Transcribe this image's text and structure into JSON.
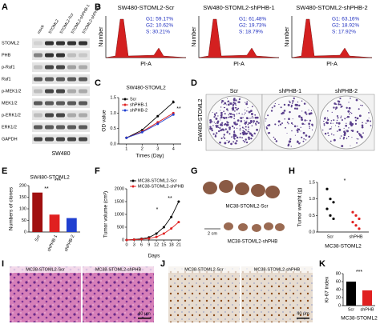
{
  "figure": {
    "panel_labels": [
      "A",
      "B",
      "C",
      "D",
      "E",
      "F",
      "G",
      "H",
      "I",
      "J",
      "K"
    ],
    "blot": {
      "lanes": [
        "mock",
        "STOML2",
        "STOML2-Scr",
        "STOML2-shPHB-1",
        "STOML2-shPHB-2"
      ],
      "rows": [
        "STOML2",
        "PHB",
        "p-Raf1",
        "Raf1",
        "p-MEK1/2",
        "MEK1/2",
        "p-ERK1/2",
        "ERK1/2",
        "GAPDH"
      ],
      "cell_line": "SW480"
    },
    "flow": {
      "y_label": "Number",
      "x_label": "PI-A",
      "panels": [
        {
          "title": "SW480-STOML2-Scr",
          "stats": [
            "G1: 59.17%",
            "G2: 10.62%",
            "S: 30.21%"
          ]
        },
        {
          "title": "SW480-STOML2-shPHB-1",
          "stats": [
            "G1: 61.48%",
            "G2: 19.73%",
            "S: 18.79%"
          ]
        },
        {
          "title": "SW480-STOML2-shPHB-2",
          "stats": [
            "G1: 63.16%",
            "G2: 18.92%",
            "S: 17.92%"
          ]
        }
      ]
    },
    "colony": {
      "side_label": "SW480-STOML2",
      "plates": [
        "Scr",
        "shPHB-1",
        "shPHB-2"
      ]
    },
    "tumor_photo": {
      "scr": "MC38-STOML2-Scr",
      "sh": "MC38-STOML2-shPHB",
      "scale": "2 cm"
    },
    "he": {
      "labels": [
        "MC38-STOML2-Scr",
        "MC38-STOML2-shPHB"
      ],
      "scale": "40 μm"
    },
    "ihc": {
      "labels": [
        "MC38-STOML2-Scr",
        "MC38-STOML2-shPHB"
      ],
      "scale": "40 μm"
    }
  },
  "chart_data": [
    {
      "type": "line",
      "title": "SW480-STOML2",
      "y_label": "OD value",
      "x_label": "Times (Day)",
      "x": [
        1,
        2,
        3,
        4
      ],
      "xlim": [
        0.5,
        4.5
      ],
      "xticks": [
        1,
        2,
        3,
        4
      ],
      "ylim": [
        0,
        1.5
      ],
      "yticks": [
        {
          "value": 0,
          "label": "0.0"
        },
        {
          "value": 0.5,
          "label": "0.5"
        },
        {
          "value": 1,
          "label": "1.0"
        },
        {
          "value": 1.5,
          "label": "1.5"
        }
      ],
      "series": [
        {
          "name": "Scr",
          "color": "#000000",
          "values": [
            0.2,
            0.45,
            0.9,
            1.35
          ]
        },
        {
          "name": "shPHB-1",
          "color": "#e02020",
          "values": [
            0.2,
            0.4,
            0.7,
            1.0
          ]
        },
        {
          "name": "shPHB-2",
          "color": "#2040d0",
          "values": [
            0.2,
            0.38,
            0.65,
            0.95
          ]
        }
      ],
      "annotations": [
        "*",
        "**"
      ]
    },
    {
      "type": "bar",
      "title": "SW480-STOML2",
      "y_label": "Numbers of clones",
      "categories": [
        "Scr",
        "shPHB-1",
        "shPHB-2"
      ],
      "values": [
        170,
        75,
        60
      ],
      "colors": [
        "#a01010",
        "#e02020",
        "#2040d0"
      ],
      "ylim": [
        0,
        200
      ],
      "yticks": [
        0,
        50,
        100,
        150,
        200
      ],
      "annotations": [
        "**",
        "***"
      ]
    },
    {
      "type": "line",
      "y_label": "Tumor volume (cm³)",
      "x_label": "Days",
      "x": [
        0,
        3,
        6,
        9,
        12,
        15,
        18,
        21
      ],
      "xlim": [
        0,
        22
      ],
      "xticks": [
        0,
        3,
        6,
        9,
        12,
        15,
        18,
        21
      ],
      "ylim": [
        0,
        2000
      ],
      "yticks": [
        0,
        500,
        1000,
        1500,
        2000
      ],
      "series": [
        {
          "name": "MC38-STOML2-Scr",
          "color": "#000000",
          "values": [
            0,
            20,
            50,
            100,
            250,
            500,
            900,
            1500
          ]
        },
        {
          "name": "MC38-STOML2-shPHB",
          "color": "#e02020",
          "values": [
            0,
            15,
            30,
            60,
            120,
            250,
            450,
            700
          ]
        }
      ],
      "annotations": [
        "*",
        "**"
      ]
    },
    {
      "type": "dot",
      "y_label": "Tumor weight (g)",
      "x_label": "MC38-STOML2",
      "ylim": [
        0,
        1.5
      ],
      "yticks": [
        {
          "value": 0,
          "label": "0.0"
        },
        {
          "value": 0.5,
          "label": "0.5"
        },
        {
          "value": 1,
          "label": "1.0"
        },
        {
          "value": 1.5,
          "label": "1.5"
        }
      ],
      "series": [
        {
          "name": "Scr",
          "color": "#000000",
          "values": [
            1.3,
            1.0,
            0.9,
            0.7,
            0.5,
            0.4
          ]
        },
        {
          "name": "shPHB",
          "color": "#e02020",
          "values": [
            0.6,
            0.5,
            0.4,
            0.3,
            0.2,
            0.1
          ]
        }
      ],
      "annotations": [
        "*"
      ]
    },
    {
      "type": "bar",
      "y_label": "Ki-67 index",
      "x_label": "MC38-STOML2",
      "categories": [
        "Scr",
        "shPHB"
      ],
      "values": [
        60,
        38
      ],
      "colors": [
        "#000000",
        "#e02020"
      ],
      "ylim": [
        0,
        80
      ],
      "yticks": [
        0,
        20,
        40,
        60,
        80
      ],
      "annotations": [
        "***"
      ]
    }
  ]
}
